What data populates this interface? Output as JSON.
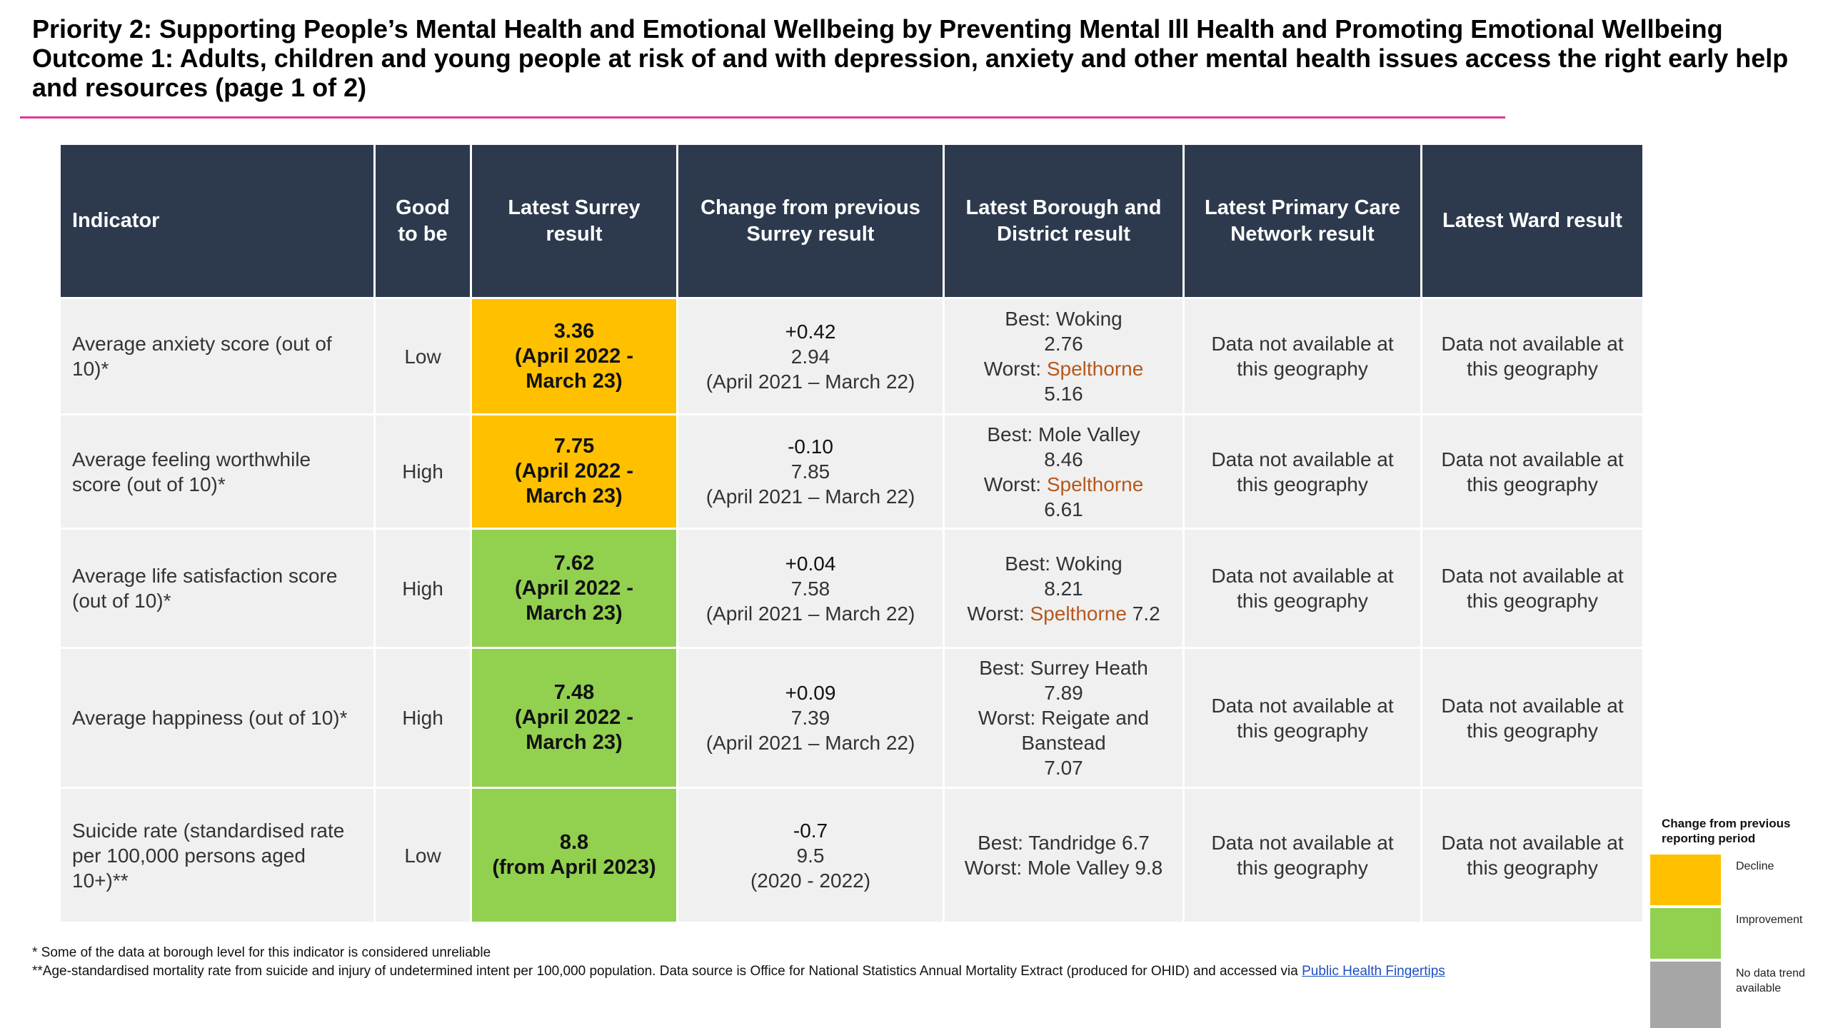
{
  "header": {
    "priority": "Priority 2: Supporting People’s Mental Health and Emotional Wellbeing by Preventing Mental Ill Health and Promoting Emotional Wellbeing",
    "outcome": "Outcome 1: Adults, children and young people at risk of and with depression, anxiety and other mental health issues access the right early help and resources (page 1 of 2)"
  },
  "table": {
    "headers": [
      "Indicator",
      "Good to be",
      "Latest Surrey result",
      "Change from previous Surrey result",
      "Latest Borough and District result",
      "Latest Primary Care Network result",
      "Latest Ward result"
    ],
    "rows": [
      {
        "indicator": "Average anxiety score (out of 10)*",
        "good_to_be": "Low",
        "result": {
          "value": "3.36",
          "period": "(April 2022 - March 23)",
          "color": "#ffc000"
        },
        "change": {
          "delta": "+0.42",
          "previous": "2.94",
          "period": "(April 2021 – March 22)"
        },
        "borough": [
          [
            {
              "text": "Best: Woking"
            }
          ],
          [
            {
              "text": "2.76"
            }
          ],
          [
            {
              "text": "Worst:"
            },
            {
              "text": "Spelthorne",
              "color": "#b5591c"
            }
          ],
          [
            {
              "text": "5.16"
            }
          ]
        ],
        "pcn": "Data not available at this geography",
        "ward": "Data not available at this geography"
      },
      {
        "indicator": "Average feeling worthwhile score (out of 10)*",
        "good_to_be": "High",
        "result": {
          "value": "7.75",
          "period": "(April 2022 - March 23)",
          "color": "#ffc000"
        },
        "change": {
          "delta": "-0.10",
          "previous": "7.85",
          "period": "(April 2021 – March 22)"
        },
        "borough": [
          [
            {
              "text": "Best: Mole Valley"
            }
          ],
          [
            {
              "text": "8.46"
            }
          ],
          [
            {
              "text": "Worst:"
            },
            {
              "text": "Spelthorne",
              "color": "#b5591c"
            }
          ],
          [
            {
              "text": "6.61"
            }
          ]
        ],
        "pcn": "Data not available at this geography",
        "ward": "Data not available at this geography"
      },
      {
        "indicator": "Average life satisfaction score (out of 10)*",
        "good_to_be": "High",
        "result": {
          "value": "7.62",
          "period": "(April 2022 - March 23)",
          "color": "#92d050"
        },
        "change": {
          "delta": "+0.04",
          "previous": "7.58",
          "period": "(April 2021 – March 22)"
        },
        "borough": [
          [
            {
              "text": "Best: Woking"
            }
          ],
          [
            {
              "text": "8.21"
            }
          ],
          [
            {
              "text": "Worst:"
            },
            {
              "text": "Spelthorne",
              "color": "#b5591c"
            },
            {
              "text": "7.2"
            }
          ]
        ],
        "pcn": "Data not available at this geography",
        "ward": "Data not available at this geography"
      },
      {
        "indicator": "Average happiness (out of 10)*",
        "good_to_be": "High",
        "result": {
          "value": "7.48",
          "period": "(April 2022 - March 23)",
          "color": "#92d050"
        },
        "change": {
          "delta": "+0.09",
          "previous": "7.39",
          "period": "(April 2021 – March 22)"
        },
        "borough": [
          [
            {
              "text": "Best: Surrey Heath"
            }
          ],
          [
            {
              "text": "7.89"
            }
          ],
          [
            {
              "text": "Worst: Reigate and Banstead"
            }
          ],
          [
            {
              "text": "7.07"
            }
          ]
        ],
        "pcn": "Data not available at this geography",
        "ward": "Data not available at this geography"
      },
      {
        "indicator": "Suicide rate (standardised rate per 100,000 persons aged 10+)**",
        "good_to_be": "Low",
        "result": {
          "value": "8.8",
          "period": "(from April 2023)",
          "color": "#92d050"
        },
        "change": {
          "delta": "-0.7",
          "previous": "9.5",
          "period": "(2020 - 2022)"
        },
        "borough": [
          [
            {
              "text": "Best: Tandridge 6.7"
            }
          ],
          [
            {
              "text": "Worst: Mole Valley 9.8"
            }
          ]
        ],
        "pcn": "Data not available at this geography",
        "ward": "Data not available at this geography"
      }
    ]
  },
  "footnotes": {
    "note1": "* Some of the data at borough level for this indicator is considered unreliable",
    "note2": "**Age-standardised mortality rate from suicide and injury of undetermined intent per 100,000 population. Data source is Office for National Statistics Annual Mortality Extract (produced for OHID) and accessed via",
    "link": "Public Health Fingertips"
  },
  "legend": {
    "title": "Change from previous reporting period",
    "items": [
      {
        "label": "Decline",
        "color": "#ffc000"
      },
      {
        "label": "Improvement",
        "color": "#92d050"
      },
      {
        "label": "No data trend available",
        "color": "#a6a6a6"
      }
    ]
  }
}
